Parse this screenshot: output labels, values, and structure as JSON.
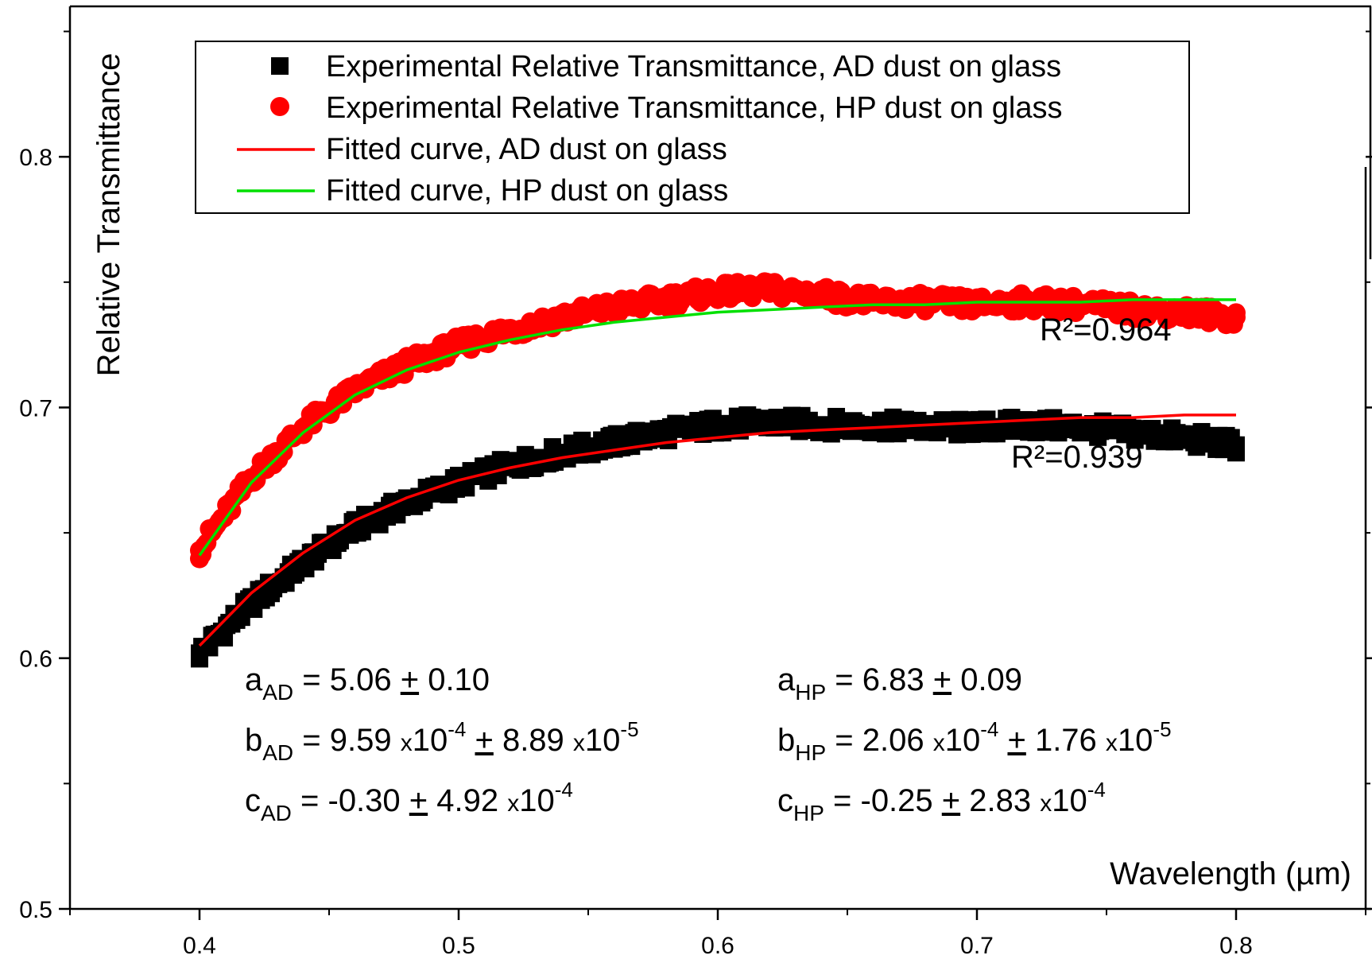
{
  "chart_data": {
    "type": "scatter",
    "title": "",
    "xlabel": "Wavelength (µm)",
    "ylabel": "Relative Transmittance",
    "xlim": [
      0.35,
      0.85
    ],
    "ylim": [
      0.5,
      0.86
    ],
    "x_ticks": [
      "0.4",
      "0.5",
      "0.6",
      "0.7",
      "0.8"
    ],
    "y_ticks": [
      "0.5",
      "0.6",
      "0.7",
      "0.8"
    ],
    "grid": false,
    "legend_position": "top",
    "legend": [
      {
        "label": "Experimental Relative Transmittance, AD dust on glass",
        "marker": "square",
        "color": "#000000"
      },
      {
        "label": "Experimental Relative Transmittance, HP dust on glass",
        "marker": "circle",
        "color": "#ff0000"
      },
      {
        "label": "Fitted curve, AD dust on glass",
        "marker": "line",
        "color": "#ff0000"
      },
      {
        "label": "Fitted curve, HP dust on glass",
        "marker": "line",
        "color": "#00e000"
      }
    ],
    "series": [
      {
        "name": "Experimental Relative Transmittance, AD dust on glass",
        "kind": "scatter",
        "marker": "square",
        "color": "#000000",
        "x": [
          0.4,
          0.42,
          0.44,
          0.46,
          0.48,
          0.5,
          0.52,
          0.54,
          0.56,
          0.58,
          0.6,
          0.62,
          0.64,
          0.66,
          0.68,
          0.7,
          0.72,
          0.74,
          0.76,
          0.78,
          0.8
        ],
        "y": [
          0.602,
          0.622,
          0.638,
          0.652,
          0.662,
          0.67,
          0.677,
          0.682,
          0.686,
          0.69,
          0.693,
          0.694,
          0.693,
          0.693,
          0.692,
          0.692,
          0.693,
          0.692,
          0.69,
          0.688,
          0.685
        ]
      },
      {
        "name": "Experimental Relative Transmittance, HP dust on glass",
        "kind": "scatter",
        "marker": "circle",
        "color": "#ff0000",
        "x": [
          0.4,
          0.42,
          0.44,
          0.46,
          0.48,
          0.5,
          0.52,
          0.54,
          0.56,
          0.58,
          0.6,
          0.62,
          0.64,
          0.66,
          0.68,
          0.7,
          0.72,
          0.74,
          0.76,
          0.78,
          0.8
        ],
        "y": [
          0.643,
          0.672,
          0.692,
          0.707,
          0.717,
          0.725,
          0.731,
          0.736,
          0.74,
          0.743,
          0.746,
          0.747,
          0.745,
          0.742,
          0.742,
          0.741,
          0.742,
          0.741,
          0.739,
          0.738,
          0.736
        ]
      },
      {
        "name": "Fitted curve, AD dust on glass",
        "kind": "line",
        "color": "#ff0000",
        "x": [
          0.4,
          0.42,
          0.44,
          0.46,
          0.48,
          0.5,
          0.52,
          0.54,
          0.56,
          0.58,
          0.6,
          0.62,
          0.64,
          0.66,
          0.68,
          0.7,
          0.72,
          0.74,
          0.76,
          0.78,
          0.8
        ],
        "y": [
          0.605,
          0.626,
          0.642,
          0.655,
          0.664,
          0.671,
          0.676,
          0.68,
          0.683,
          0.686,
          0.688,
          0.69,
          0.691,
          0.692,
          0.693,
          0.694,
          0.695,
          0.696,
          0.696,
          0.697,
          0.697
        ]
      },
      {
        "name": "Fitted curve, HP dust on glass",
        "kind": "line",
        "color": "#00e000",
        "x": [
          0.4,
          0.42,
          0.44,
          0.46,
          0.48,
          0.5,
          0.52,
          0.54,
          0.56,
          0.58,
          0.6,
          0.62,
          0.64,
          0.66,
          0.68,
          0.7,
          0.72,
          0.74,
          0.76,
          0.78,
          0.8
        ],
        "y": [
          0.641,
          0.67,
          0.69,
          0.705,
          0.715,
          0.722,
          0.727,
          0.731,
          0.734,
          0.736,
          0.738,
          0.739,
          0.74,
          0.741,
          0.741,
          0.742,
          0.742,
          0.742,
          0.743,
          0.743,
          0.743
        ]
      }
    ],
    "annotations": {
      "r2_hp": "R²=0.964",
      "r2_ad": "R²=0.939",
      "params_ad": [
        {
          "var": "a",
          "sub": "AD",
          "text": " = 5.06 ",
          "pm": "+",
          "rest": " 0.10"
        },
        {
          "var": "b",
          "sub": "AD",
          "text": " = 9.59 ",
          "x1": "x10",
          "e1": "-4",
          "pm": "+",
          "rest": " 8.89 ",
          "x2": "x10",
          "e2": "-5"
        },
        {
          "var": "c",
          "sub": "AD",
          "text": " = -0.30 ",
          "pm": "+",
          "rest": " 4.92 ",
          "x2": "x10",
          "e2": "-4"
        }
      ],
      "params_hp": [
        {
          "var": "a",
          "sub": "HP",
          "text": " = 6.83 ",
          "pm": "+",
          "rest": " 0.09"
        },
        {
          "var": "b",
          "sub": "HP",
          "text": " = 2.06 ",
          "x1": "x10",
          "e1": "-4",
          "pm": "+",
          "rest": " 1.76 ",
          "x2": "x10",
          "e2": "-5"
        },
        {
          "var": "c",
          "sub": "HP",
          "text": " = -0.25 ",
          "pm": "+",
          "rest": " 2.83 ",
          "x2": "x10",
          "e2": "-4"
        }
      ]
    }
  }
}
